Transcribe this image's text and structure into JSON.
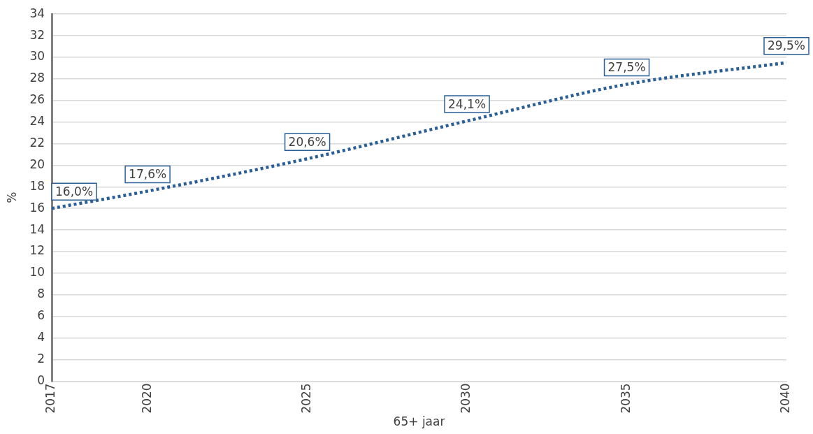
{
  "chart_data": {
    "type": "line",
    "xlabel": "65+ jaar",
    "ylabel": "%",
    "x": [
      2017,
      2020,
      2025,
      2030,
      2035,
      2040
    ],
    "series": [
      {
        "color": "#2a5f96",
        "values": [
          16.0,
          17.6,
          20.6,
          24.1,
          27.5,
          29.5
        ],
        "value_labels": [
          "16,0%",
          "17,6%",
          "20,6%",
          "24,1%",
          "27,5%",
          "29,5%"
        ]
      }
    ],
    "xlim": [
      2017,
      2040
    ],
    "xticks": [
      2017,
      2020,
      2025,
      2030,
      2035,
      2040
    ],
    "ylim": [
      0,
      34
    ],
    "yticks": [
      0,
      2,
      4,
      6,
      8,
      10,
      12,
      14,
      16,
      18,
      20,
      22,
      24,
      26,
      28,
      30,
      32,
      34
    ],
    "grid": "y",
    "legend": false,
    "marker": "none",
    "line_style": "dotted"
  }
}
